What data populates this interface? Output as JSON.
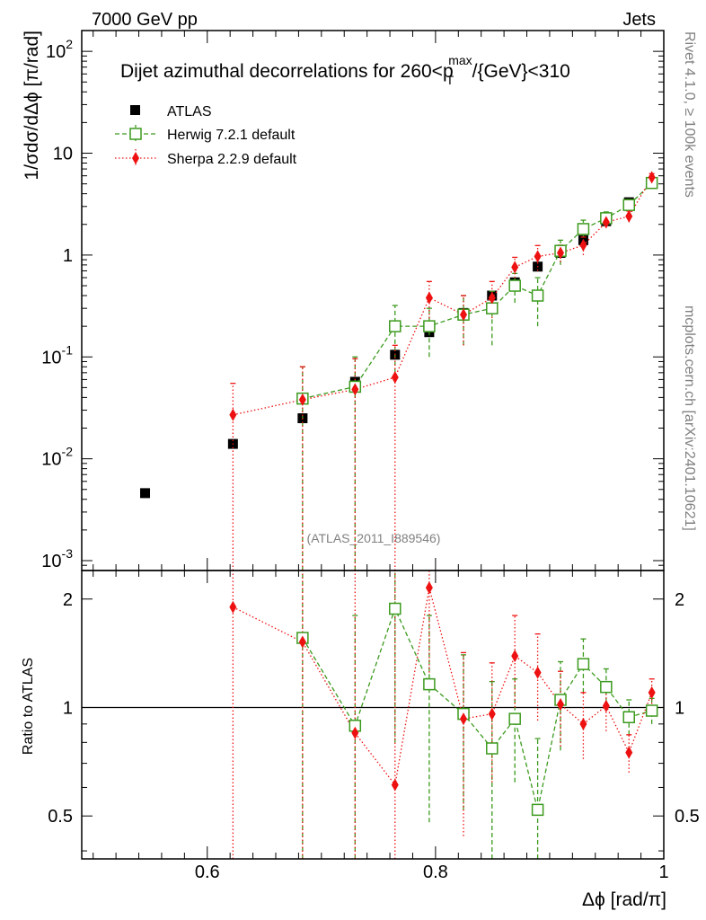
{
  "header": {
    "left_label": "7000 GeV pp",
    "right_label": "Jets"
  },
  "side_labels": {
    "rivet": "Rivet 4.1.0, ≥ 100k events",
    "mcplots": "mcplots.cern.ch [arXiv:2401.10621]"
  },
  "chart_data": {
    "type": "scatter",
    "title": "Dijet azimuthal decorrelations for 260<p_T^max/{GeV}<310",
    "title_main": "Dijet azimuthal decorrelations for 260<p",
    "title_sup": "max",
    "title_sub": "T",
    "title_tail": "/{GeV}<310",
    "xlabel": "Δϕ [rad/π]",
    "ylabel": "1/σdσ/dΔϕ [π/rad]",
    "ratio_ylabel": "Ratio to ATLAS",
    "analysis_id": "(ATLAS_2011_I889546)",
    "xlim": [
      0.49,
      1.0
    ],
    "ylim": [
      0.0008,
      160
    ],
    "ratio_ylim": [
      0.38,
      2.4
    ],
    "yscale": "log",
    "x_ticks": [
      0.6,
      0.8,
      1.0
    ],
    "x_tick_labels": [
      "0.6",
      "0.8",
      "1"
    ],
    "y_tick_labels": [
      "10^-3",
      "10^-2",
      "10^-1",
      "1",
      "10",
      "10^2"
    ],
    "ratio_tick_labels": [
      "0.5",
      "1",
      "2"
    ],
    "legend": [
      "ATLAS",
      "Herwig 7.2.1 default",
      "Sherpa 2.2.9 default"
    ],
    "colors": {
      "atlas": "#000000",
      "herwig": "#3c9a1e",
      "sherpa": "#ee1111"
    },
    "series": [
      {
        "name": "ATLAS",
        "x": [
          0.5455,
          0.6225,
          0.6835,
          0.7295,
          0.7645,
          0.7945,
          0.8245,
          0.8495,
          0.8695,
          0.8895,
          0.9095,
          0.9295,
          0.9495,
          0.9695,
          0.9895
        ],
        "values": [
          0.0046,
          0.014,
          0.025,
          0.057,
          0.105,
          0.175,
          0.27,
          0.4,
          0.54,
          0.77,
          1.05,
          1.4,
          2.15,
          3.3,
          5.2
        ]
      },
      {
        "name": "Herwig 7.2.1 default",
        "x": [
          0.6835,
          0.7295,
          0.7645,
          0.7945,
          0.8245,
          0.8495,
          0.8695,
          0.8895,
          0.9095,
          0.9295,
          0.9495,
          0.9695,
          0.9895
        ],
        "values": [
          0.039,
          0.051,
          0.2,
          0.2,
          0.26,
          0.3,
          0.5,
          0.4,
          1.1,
          1.8,
          2.3,
          3.1,
          5.1
        ],
        "err_low": [
          1e-05,
          1e-05,
          0.07,
          0.1,
          0.13,
          0.13,
          0.34,
          0.2,
          0.8,
          1.5,
          1.95,
          2.7,
          4.6
        ],
        "err_high": [
          0.08,
          0.1,
          0.32,
          0.3,
          0.4,
          0.44,
          0.66,
          0.6,
          1.4,
          2.2,
          2.65,
          3.5,
          5.6
        ],
        "ratio": [
          1.56,
          0.89,
          1.88,
          1.16,
          0.96,
          0.77,
          0.93,
          0.52,
          1.05,
          1.32,
          1.14,
          0.94,
          0.98
        ],
        "ratio_err_low": [
          0.0,
          0.0,
          0.8,
          0.48,
          0.52,
          0.35,
          0.62,
          0.26,
          0.76,
          1.1,
          0.99,
          0.84,
          0.9
        ],
        "ratio_err_high": [
          2.8,
          1.8,
          2.8,
          1.8,
          1.4,
          1.18,
          1.2,
          0.82,
          1.34,
          1.55,
          1.28,
          1.05,
          1.06
        ]
      },
      {
        "name": "Sherpa 2.2.9 default",
        "x": [
          0.6225,
          0.6835,
          0.7295,
          0.7645,
          0.7945,
          0.8245,
          0.8495,
          0.8695,
          0.8895,
          0.9095,
          0.9295,
          0.9495,
          0.9695,
          0.9895
        ],
        "values": [
          0.027,
          0.038,
          0.048,
          0.063,
          0.38,
          0.26,
          0.38,
          0.76,
          0.97,
          1.05,
          1.25,
          2.1,
          2.4,
          5.8
        ],
        "err_low": [
          1e-05,
          1e-05,
          1e-05,
          1e-05,
          0.22,
          0.13,
          0.24,
          0.55,
          0.7,
          0.85,
          1.0,
          1.85,
          2.1,
          5.3
        ],
        "err_high": [
          0.055,
          0.08,
          0.096,
          0.13,
          0.55,
          0.4,
          0.55,
          0.95,
          1.24,
          1.25,
          1.5,
          2.35,
          2.7,
          6.3
        ],
        "ratio": [
          1.9,
          1.52,
          0.85,
          0.61,
          2.15,
          0.93,
          0.96,
          1.39,
          1.25,
          1.02,
          0.9,
          1.01,
          0.75,
          1.1
        ],
        "ratio_err_low": [
          0.0,
          0.0,
          0.0,
          0.0,
          1.25,
          0.44,
          0.62,
          1.0,
          0.92,
          0.78,
          0.72,
          0.86,
          0.66,
          1.0
        ],
        "ratio_err_high": [
          2.8,
          2.8,
          2.8,
          2.8,
          2.5,
          1.42,
          1.33,
          1.8,
          1.6,
          1.26,
          1.1,
          1.15,
          0.84,
          1.2
        ]
      }
    ]
  }
}
